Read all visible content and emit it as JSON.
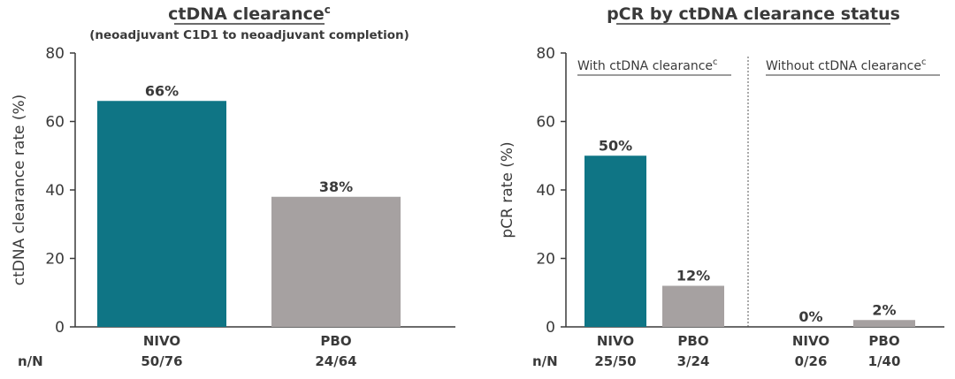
{
  "colors": {
    "nivo": "#0f7585",
    "pbo": "#a6a1a1",
    "axis": "#3a3a3a"
  },
  "left": {
    "title": "ctDNA clearance",
    "title_sup": "c",
    "subtitle": "(neoadjuvant C1D1 to neoadjuvant completion)",
    "n_label": "n/N"
  },
  "right": {
    "title": "pCR by ctDNA clearance status",
    "n_label": "n/N",
    "group1_label": "With ctDNA clearance",
    "group1_sup": "c",
    "group2_label": "Without ctDNA clearance",
    "group2_sup": "c"
  },
  "chart_data": [
    {
      "type": "bar",
      "title": "ctDNA clearance",
      "subtitle": "(neoadjuvant C1D1 to neoadjuvant completion)",
      "ylabel": "ctDNA clearance rate (%)",
      "xlabel": "",
      "ylim": [
        0,
        80
      ],
      "yticks": [
        0,
        20,
        40,
        60,
        80
      ],
      "categories": [
        "NIVO",
        "PBO"
      ],
      "values": [
        66,
        38
      ],
      "value_labels": [
        "66%",
        "38%"
      ],
      "n_of_N": [
        "50/76",
        "24/64"
      ],
      "series_colors": [
        "nivo",
        "pbo"
      ]
    },
    {
      "type": "bar",
      "title": "pCR by ctDNA clearance status",
      "ylabel": "pCR rate (%)",
      "xlabel": "",
      "ylim": [
        0,
        80
      ],
      "yticks": [
        0,
        20,
        40,
        60,
        80
      ],
      "groups": [
        "With ctDNA clearance",
        "Without ctDNA clearance"
      ],
      "categories": [
        "NIVO",
        "PBO",
        "NIVO",
        "PBO"
      ],
      "category_group": [
        0,
        0,
        1,
        1
      ],
      "values": [
        50,
        12,
        0,
        2
      ],
      "value_labels": [
        "50%",
        "12%",
        "0%",
        "2%"
      ],
      "n_of_N": [
        "25/50",
        "3/24",
        "0/26",
        "1/40"
      ],
      "series_colors": [
        "nivo",
        "pbo",
        "nivo",
        "pbo"
      ]
    }
  ]
}
